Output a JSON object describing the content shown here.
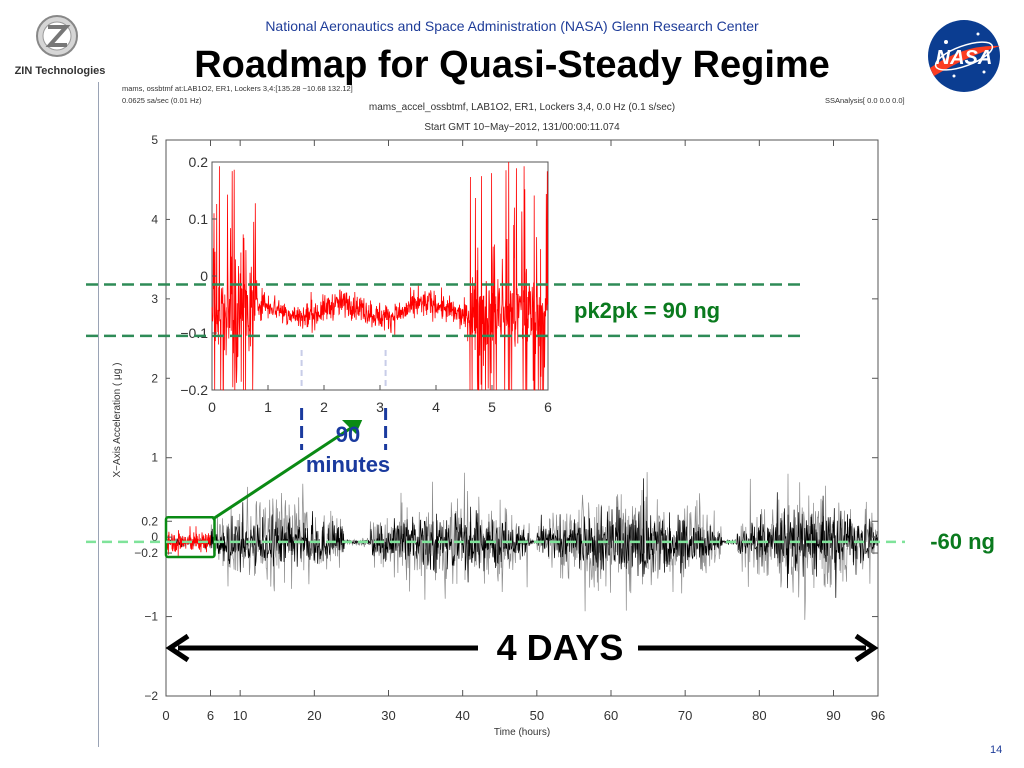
{
  "header": {
    "org": "National Aeronautics and Space Administration (NASA) Glenn Research Center",
    "title": "Roadmap for Quasi-Steady Regime",
    "zin_logo_text": "ZIN Technologies",
    "nasa_logo_text": "NASA",
    "page_number": "14"
  },
  "plot_meta": {
    "top_left_line1": "mams, ossbtmf at:LAB1O2, ER1, Lockers 3,4:[135.28 −10.68 132.12]",
    "top_left_line2": "0.0625 sa/sec (0.01 Hz)",
    "center_title": "mams_accel_ossbtmf, LAB1O2, ER1, Lockers 3,4, 0.0 Hz (0.1 s/sec)",
    "start_time": "Start GMT 10−May−2012, 131/00:00:11.074",
    "top_right": "SSAnalysis[ 0.0  0.0  0.0]"
  },
  "annotations": {
    "pk2pk": "pk2pk = 90 ng",
    "mean_line": "-60 ng",
    "period_num": "90",
    "period_unit": "minutes",
    "duration": "4 DAYS"
  },
  "colors": {
    "title_blue": "#1f3d99",
    "annotation_green": "#0a7a1e",
    "dashed_green": "#2e8b57",
    "light_green": "#7fe39a",
    "signal_black": "#000000",
    "inset_red": "#ff0000",
    "period_blue": "#1a3a9e"
  },
  "chart_data": [
    {
      "type": "line",
      "name": "main",
      "xlabel": "Time (hours)",
      "ylabel": "X−Axis Acceleration ( μg )",
      "xlim": [
        0,
        96
      ],
      "ylim": [
        -2,
        5
      ],
      "x_ticks": [
        0,
        6,
        10,
        20,
        30,
        40,
        50,
        60,
        70,
        80,
        90,
        96
      ],
      "y_ticks": [
        -2,
        -1,
        -0.2,
        0,
        0.2,
        1,
        2,
        3,
        4,
        5
      ],
      "y_tick_labels": [
        "−2",
        "−1",
        "−0.2",
        "0",
        "0.2",
        "1",
        "2",
        "3",
        "4",
        "5"
      ],
      "mean_level": -0.06,
      "bursts": [
        {
          "x_start": 6,
          "x_end": 24,
          "amplitude": 0.55
        },
        {
          "x_start": 27.5,
          "x_end": 49,
          "amplitude": 0.55
        },
        {
          "x_start": 50,
          "x_end": 75,
          "amplitude": 0.6
        },
        {
          "x_start": 77,
          "x_end": 96,
          "amplitude": 0.6
        }
      ],
      "quiet_gaps": [
        [
          24,
          27.5
        ],
        [
          49,
          50
        ],
        [
          75,
          77
        ]
      ],
      "highlight_window": [
        0,
        6
      ]
    },
    {
      "type": "line",
      "name": "inset",
      "xlim": [
        0,
        6
      ],
      "ylim": [
        -0.2,
        0.2
      ],
      "x_ticks": [
        0,
        1,
        2,
        3,
        4,
        5,
        6
      ],
      "y_ticks": [
        -0.2,
        -0.1,
        0,
        0.1,
        0.2
      ],
      "y_tick_labels": [
        "−0.2",
        "−0.1",
        "0",
        "0.1",
        "0.2"
      ],
      "baseline": -0.06,
      "pk2pk_band": [
        -0.105,
        -0.015
      ],
      "noisy_segments": [
        [
          0,
          0.8
        ],
        [
          4.6,
          6
        ]
      ],
      "period_markers": [
        1.6,
        3.1
      ]
    }
  ]
}
